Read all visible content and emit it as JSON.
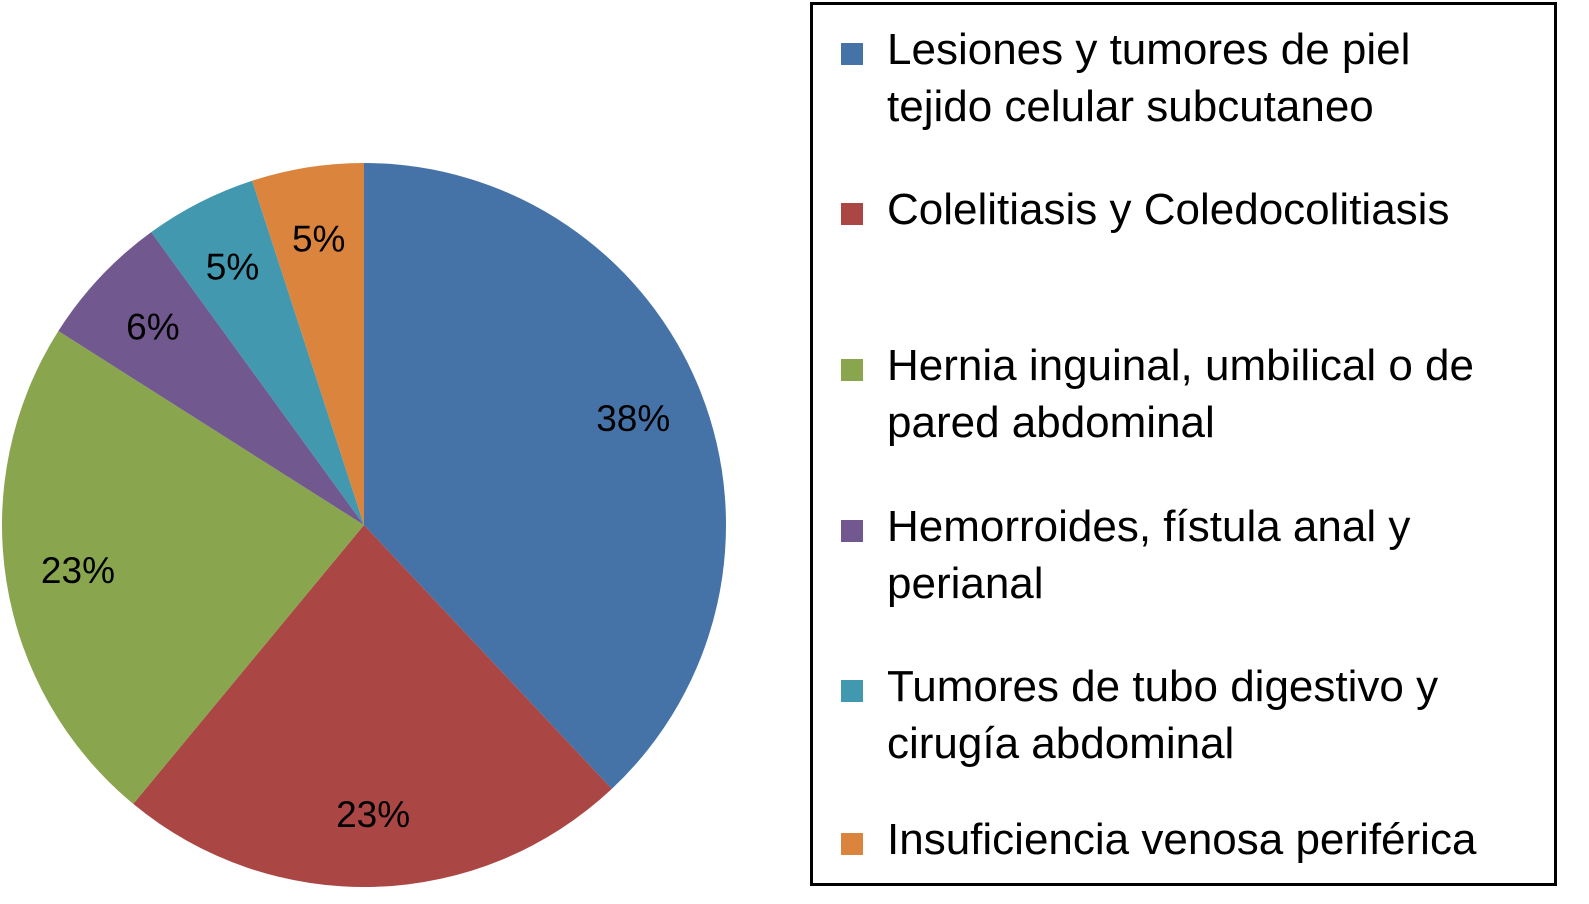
{
  "chart_data": {
    "type": "pie",
    "start_angle_deg": 0,
    "direction": "clockwise",
    "slices": [
      {
        "label": "Lesiones y tumores de piel tejido celular subcutaneo",
        "legend_lines": "Lesiones y tumores de piel\ntejido celular subcutaneo",
        "value": 38,
        "value_label": "38%",
        "color": "#4572A7"
      },
      {
        "label": "Colelitiasis y Coledocolitiasis",
        "legend_lines": "Colelitiasis y Coledocolitiasis",
        "value": 23,
        "value_label": "23%",
        "color": "#AA4643"
      },
      {
        "label": "Hernia inguinal, umbilical o de pared abdominal",
        "legend_lines": "Hernia inguinal, umbilical o de\npared abdominal",
        "value": 23,
        "value_label": "23%",
        "color": "#89A54E"
      },
      {
        "label": "Hemorroides, fístula anal y perianal",
        "legend_lines": "Hemorroides, fístula anal y\nperianal",
        "value": 6,
        "value_label": "6%",
        "color": "#71588F"
      },
      {
        "label": "Tumores de tubo digestivo y cirugía abdominal",
        "legend_lines": "Tumores de tubo digestivo y\ncirugía abdominal",
        "value": 5,
        "value_label": "5%",
        "color": "#4198AF"
      },
      {
        "label": "Insuficiencia venosa periférica",
        "legend_lines": "Insuficiencia venosa periférica",
        "value": 5,
        "value_label": "5%",
        "color": "#DB843D"
      }
    ],
    "legend_position": "right"
  }
}
